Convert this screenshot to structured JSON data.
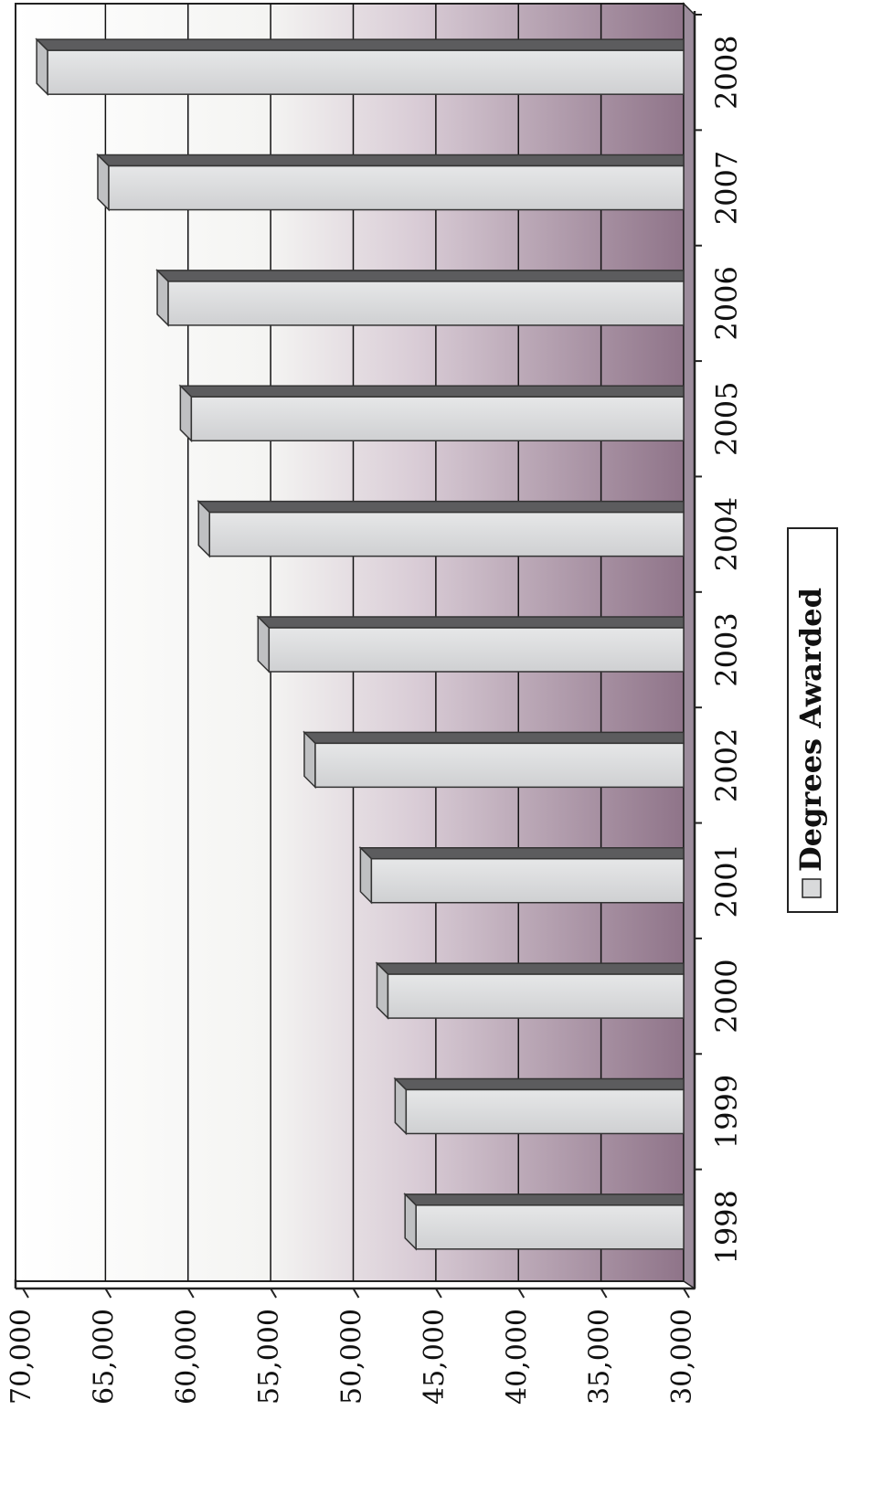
{
  "chart_data": {
    "type": "bar",
    "orientation": "horizontal",
    "style": "3d",
    "categories": [
      "1998",
      "1999",
      "2000",
      "2001",
      "2002",
      "2003",
      "2004",
      "2005",
      "2006",
      "2007",
      "2008"
    ],
    "series": [
      {
        "name": "Degrees Awarded",
        "values": [
          46200,
          46800,
          47900,
          48900,
          52300,
          55100,
          58700,
          59800,
          61200,
          64800,
          68500
        ]
      }
    ],
    "value_ticks": [
      "30,000",
      "35,000",
      "40,000",
      "45,000",
      "50,000",
      "55,000",
      "60,000",
      "65,000",
      "70,000"
    ],
    "xlim": [
      30000,
      70000
    ],
    "grid": true,
    "legend_position": "bottom"
  },
  "colors": {
    "bar_face": "#d9dadb",
    "bar_top": "#5c5c5e",
    "bar_end": "#bfc0c2",
    "wall_light": "#ffffff",
    "wall_dark": "#8e7288",
    "floor": "#9c8c9c",
    "axis": "#222222",
    "grid": "#111111"
  }
}
